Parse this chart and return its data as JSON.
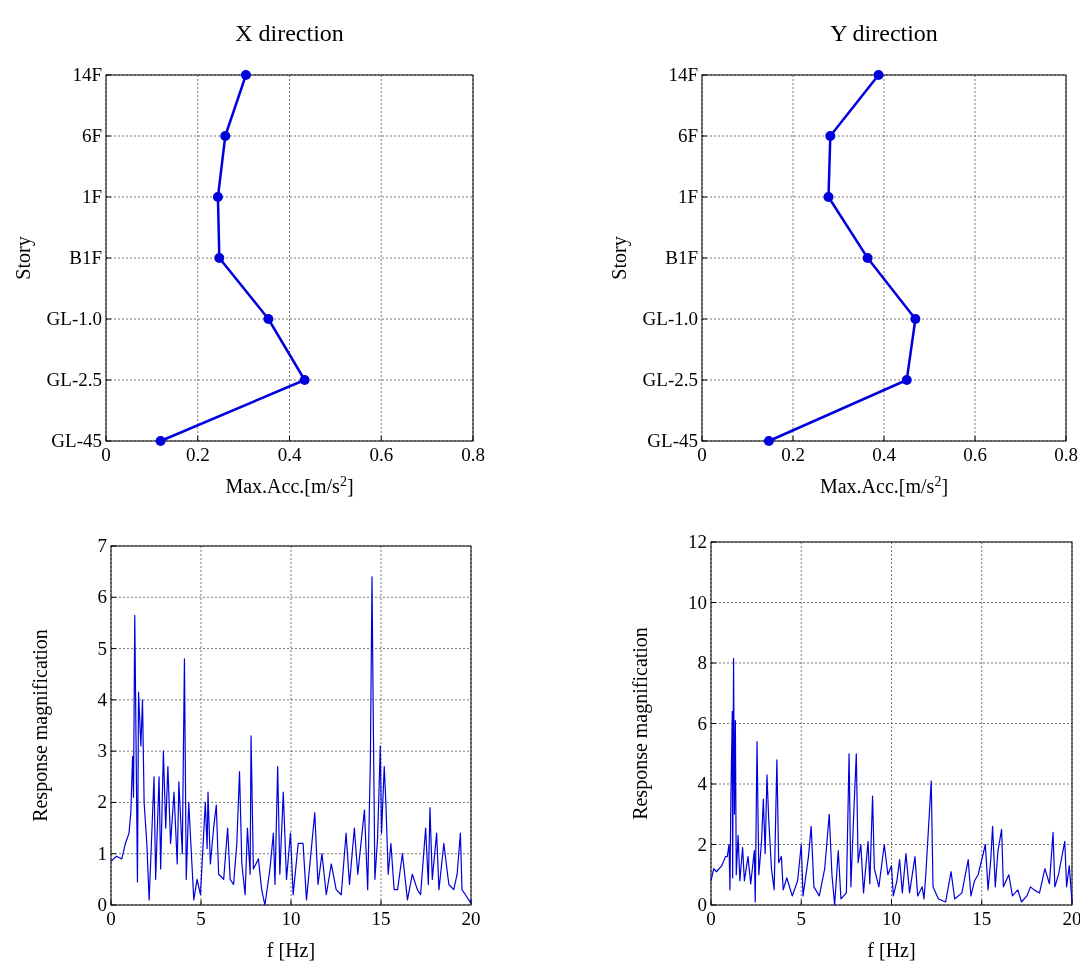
{
  "chart_data": [
    {
      "type": "line",
      "title": "X direction",
      "xlabel": "Max.Acc.[m/s$^{2}$]",
      "ylabel": "Story",
      "orientation": "horizontal",
      "categories": [
        "14F",
        "6F",
        "1F",
        "B1F",
        "GL-1.0",
        "GL-2.5",
        "GL-45"
      ],
      "values": [
        0.305,
        0.26,
        0.244,
        0.247,
        0.354,
        0.433,
        0.119
      ],
      "color": "#0000dd",
      "marker": "circle",
      "xlim": [
        0,
        0.8
      ],
      "xticks": [
        0,
        0.2,
        0.4,
        0.6,
        0.8
      ],
      "grid": true
    },
    {
      "type": "line",
      "title": "Y direction",
      "xlabel": "Max.Acc.[m/s$^{2}$]",
      "ylabel": "Story",
      "orientation": "horizontal",
      "categories": [
        "14F",
        "6F",
        "1F",
        "B1F",
        "GL-1.0",
        "GL-2.5",
        "GL-45"
      ],
      "values": [
        0.388,
        0.282,
        0.278,
        0.364,
        0.469,
        0.45,
        0.147
      ],
      "color": "#0000dd",
      "marker": "circle",
      "xlim": [
        0,
        0.8
      ],
      "xticks": [
        0,
        0.2,
        0.4,
        0.6,
        0.8
      ],
      "grid": true
    },
    {
      "type": "line",
      "xlabel": "f [Hz]",
      "ylabel": "Response magnification",
      "color": "#0000dd",
      "xlim": [
        0,
        20
      ],
      "xticks": [
        0,
        5,
        10,
        15,
        20
      ],
      "ylim": [
        0,
        7
      ],
      "yticks": [
        0,
        1,
        2,
        3,
        4,
        5,
        6,
        7
      ],
      "grid": true,
      "x": [
        0,
        0.3,
        0.6,
        0.8,
        1.0,
        1.1,
        1.2,
        1.25,
        1.32,
        1.47,
        1.53,
        1.66,
        1.75,
        1.84,
        1.99,
        2.12,
        2.39,
        2.48,
        2.67,
        2.76,
        2.91,
        3.04,
        3.16,
        3.31,
        3.5,
        3.68,
        3.77,
        3.96,
        4.08,
        4.18,
        4.32,
        4.42,
        4.6,
        4.78,
        4.97,
        5.06,
        5.24,
        5.34,
        5.39,
        5.52,
        5.7,
        5.85,
        5.98,
        6.26,
        6.48,
        6.62,
        6.81,
        6.99,
        7.14,
        7.27,
        7.45,
        7.58,
        7.73,
        7.78,
        7.91,
        8.19,
        8.37,
        8.55,
        8.83,
        9.02,
        9.11,
        9.26,
        9.38,
        9.57,
        9.75,
        9.97,
        10.12,
        10.4,
        10.67,
        10.86,
        11.32,
        11.5,
        11.72,
        11.96,
        12.24,
        12.51,
        12.79,
        13.06,
        13.25,
        13.52,
        13.71,
        14.08,
        14.26,
        14.41,
        14.5,
        14.55,
        14.66,
        14.81,
        14.96,
        15.03,
        15.18,
        15.27,
        15.4,
        15.55,
        15.73,
        15.92,
        16.19,
        16.47,
        16.74,
        17.02,
        17.2,
        17.48,
        17.63,
        17.72,
        17.85,
        18.09,
        18.22,
        18.49,
        18.77,
        19.04,
        19.23,
        19.41,
        19.5,
        19.69,
        19.96,
        20
      ],
      "values": [
        0.85,
        0.95,
        0.9,
        1.2,
        1.4,
        1.8,
        2.9,
        2.1,
        5.65,
        0.45,
        4.15,
        3.1,
        4.0,
        2.0,
        1.2,
        0.1,
        2.5,
        0.5,
        2.5,
        0.7,
        3.0,
        1.5,
        2.7,
        1.2,
        2.2,
        0.8,
        2.4,
        1.0,
        4.8,
        0.5,
        2.0,
        1.3,
        0.1,
        0.5,
        0.2,
        0.8,
        2.0,
        1.1,
        2.2,
        0.8,
        1.5,
        1.95,
        0.6,
        0.5,
        1.5,
        0.5,
        0.4,
        1.2,
        2.6,
        0.8,
        0.2,
        1.5,
        0.6,
        3.3,
        0.7,
        0.9,
        0.3,
        0,
        0.7,
        1.4,
        0.4,
        2.7,
        0.6,
        2.2,
        0.5,
        1.4,
        0.2,
        1.2,
        1.2,
        0.1,
        1.8,
        0.4,
        1.0,
        0.2,
        0.8,
        0.3,
        0.2,
        1.4,
        0.4,
        1.5,
        0.6,
        1.85,
        0.3,
        2.8,
        6.4,
        4.4,
        0.5,
        1.3,
        3.1,
        1.4,
        2.7,
        2.0,
        0.6,
        1.2,
        0.3,
        0.3,
        1.0,
        0.1,
        0.6,
        0.3,
        0.2,
        1.5,
        0.4,
        1.9,
        0.5,
        1.4,
        0.3,
        1.2,
        0.4,
        0.3,
        0.6,
        1.4,
        0.3,
        0.2,
        0.05,
        0.1
      ]
    },
    {
      "type": "line",
      "xlabel": "f [Hz]",
      "ylabel": "Response magnification",
      "color": "#0000dd",
      "xlim": [
        0,
        20
      ],
      "xticks": [
        0,
        5,
        10,
        15,
        20
      ],
      "ylim": [
        0,
        12
      ],
      "yticks": [
        0,
        2,
        4,
        6,
        8,
        10,
        12
      ],
      "grid": true,
      "x": [
        0,
        0.15,
        0.3,
        0.6,
        0.8,
        0.9,
        1.0,
        1.05,
        1.1,
        1.18,
        1.2,
        1.25,
        1.3,
        1.35,
        1.4,
        1.5,
        1.6,
        1.75,
        1.85,
        2.05,
        2.2,
        2.4,
        2.45,
        2.55,
        2.65,
        2.8,
        2.9,
        3.0,
        3.1,
        3.2,
        3.35,
        3.5,
        3.65,
        3.75,
        3.9,
        4.0,
        4.2,
        4.5,
        4.8,
        5.0,
        5.1,
        5.4,
        5.55,
        5.7,
        6.0,
        6.3,
        6.55,
        6.7,
        6.85,
        7.05,
        7.2,
        7.5,
        7.65,
        7.75,
        7.9,
        8.05,
        8.15,
        8.3,
        8.45,
        8.7,
        8.8,
        8.95,
        9.05,
        9.3,
        9.6,
        9.8,
        10.0,
        10.1,
        10.3,
        10.45,
        10.6,
        10.8,
        11.0,
        11.3,
        11.45,
        11.7,
        11.8,
        11.9,
        12.2,
        12.3,
        12.6,
        13.0,
        13.3,
        13.5,
        13.9,
        14.25,
        14.4,
        14.6,
        14.8,
        15.2,
        15.35,
        15.5,
        15.6,
        15.75,
        15.9,
        16.1,
        16.2,
        16.5,
        16.7,
        17.0,
        17.2,
        17.5,
        17.7,
        17.9,
        18.2,
        18.5,
        18.75,
        18.95,
        19.05,
        19.25,
        19.6,
        19.7,
        19.85,
        20
      ],
      "values": [
        0.8,
        1.2,
        1.1,
        1.3,
        1.6,
        1.6,
        2.0,
        0.5,
        3.5,
        6.4,
        0.9,
        8.15,
        3.0,
        6.1,
        1.0,
        2.3,
        0.8,
        1.9,
        0.8,
        1.6,
        0.7,
        1.8,
        0.1,
        5.4,
        1.0,
        2.1,
        3.5,
        1.7,
        4.3,
        2.8,
        1.2,
        0.5,
        4.8,
        1.4,
        1.6,
        0.5,
        0.9,
        0.3,
        0.8,
        2.0,
        0.3,
        1.6,
        2.6,
        0.6,
        0.3,
        1.2,
        3.0,
        1.0,
        0,
        1.8,
        0.2,
        0.4,
        5.0,
        0.6,
        2.9,
        5.0,
        1.4,
        2.0,
        0.4,
        2.1,
        0.7,
        3.6,
        1.2,
        0.6,
        2.0,
        1.0,
        1.3,
        0.3,
        0.8,
        1.5,
        0.4,
        1.7,
        0.4,
        1.6,
        0.3,
        0.6,
        0.2,
        1.0,
        4.1,
        0.6,
        0.2,
        0.1,
        1.1,
        0.2,
        0.4,
        1.5,
        0.3,
        0.8,
        1.0,
        2.0,
        0.5,
        1.5,
        2.6,
        0.6,
        1.8,
        2.5,
        0.6,
        1.0,
        0.3,
        0.5,
        0.1,
        0.3,
        0.6,
        0.5,
        0.4,
        1.2,
        0.7,
        2.4,
        0.6,
        1.0,
        2.1,
        0.6,
        1.3,
        0.1
      ]
    }
  ]
}
